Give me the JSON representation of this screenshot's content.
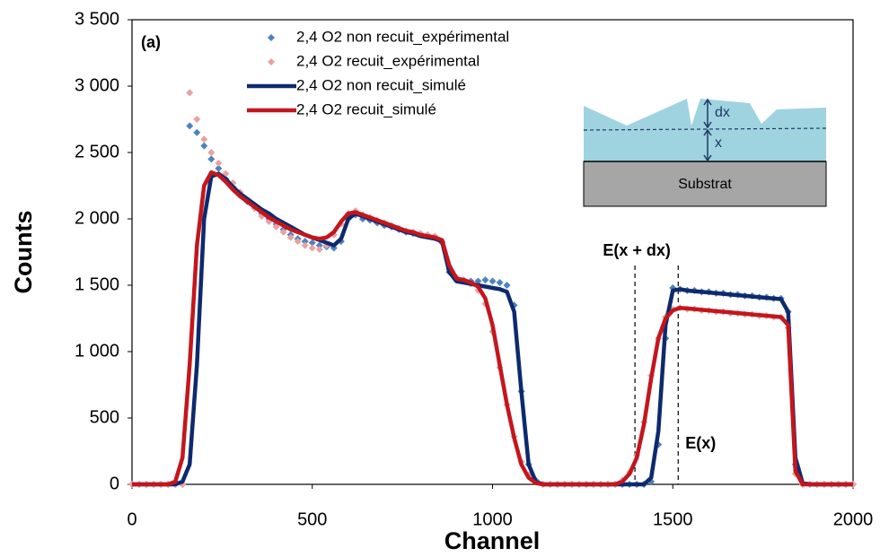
{
  "chart_data": {
    "type": "line",
    "panel_label": "(a)",
    "x_label": "Channel",
    "y_label": "Counts",
    "xlim": [
      0,
      2000
    ],
    "ylim": [
      0,
      3500
    ],
    "xticks": [
      0,
      500,
      1000,
      1500,
      2000
    ],
    "yticks": [
      0,
      500,
      {
        "value": 1000,
        "label": "1 000"
      },
      {
        "value": 1500,
        "label": "1 500"
      },
      {
        "value": 2000,
        "label": "2 000"
      },
      {
        "value": 2500,
        "label": "2 500"
      },
      {
        "value": 3000,
        "label": "3 000"
      },
      {
        "value": 3500,
        "label": "3 500"
      }
    ],
    "legend": "top-left",
    "x": [
      0,
      20,
      40,
      60,
      80,
      100,
      120,
      140,
      160,
      180,
      200,
      220,
      240,
      260,
      280,
      300,
      320,
      340,
      360,
      380,
      400,
      420,
      440,
      460,
      480,
      500,
      520,
      540,
      560,
      580,
      600,
      620,
      640,
      660,
      680,
      700,
      720,
      740,
      760,
      780,
      800,
      820,
      840,
      860,
      880,
      900,
      920,
      940,
      960,
      980,
      1000,
      1020,
      1040,
      1060,
      1080,
      1100,
      1120,
      1140,
      1160,
      1180,
      1200,
      1220,
      1240,
      1260,
      1280,
      1300,
      1320,
      1340,
      1360,
      1380,
      1400,
      1420,
      1440,
      1460,
      1480,
      1500,
      1520,
      1540,
      1560,
      1580,
      1600,
      1620,
      1640,
      1660,
      1680,
      1700,
      1720,
      1740,
      1760,
      1780,
      1800,
      1820,
      1840,
      1860,
      1880,
      1900,
      1920,
      1940,
      1960,
      1980,
      2000
    ],
    "series": [
      {
        "name": "2,4 O2 non recuit_expérimental",
        "type": "scatter",
        "color": "#4f81bd",
        "values": [
          0,
          0,
          0,
          0,
          0,
          0,
          0,
          0,
          2700,
          2650,
          2550,
          2450,
          2380,
          2300,
          2240,
          2180,
          2130,
          2080,
          2040,
          2000,
          1960,
          1920,
          1880,
          1850,
          1830,
          1820,
          1800,
          1790,
          1780,
          1830,
          2000,
          2030,
          2000,
          1990,
          1970,
          1950,
          1940,
          1920,
          1900,
          1890,
          1880,
          1870,
          1860,
          1820,
          1600,
          1540,
          1540,
          1530,
          1530,
          1540,
          1530,
          1520,
          1500,
          1350,
          700,
          150,
          30,
          0,
          0,
          0,
          0,
          0,
          0,
          0,
          0,
          0,
          0,
          0,
          0,
          0,
          0,
          0,
          20,
          300,
          1100,
          1480,
          1470,
          1460,
          1460,
          1450,
          1450,
          1440,
          1440,
          1430,
          1430,
          1420,
          1420,
          1410,
          1410,
          1400,
          1400,
          1300,
          150,
          0,
          0,
          0,
          0,
          0,
          0,
          0,
          0
        ]
      },
      {
        "name": "2,4 O2 recuit_expérimental",
        "type": "scatter",
        "color": "#e6a3a3",
        "values": [
          0,
          0,
          0,
          0,
          0,
          0,
          0,
          0,
          2950,
          2750,
          2600,
          2500,
          2420,
          2340,
          2270,
          2200,
          2140,
          2080,
          2020,
          1980,
          1940,
          1900,
          1860,
          1830,
          1800,
          1780,
          1770,
          1800,
          1880,
          1960,
          2040,
          2060,
          2030,
          2010,
          1990,
          1970,
          1950,
          1930,
          1910,
          1900,
          1890,
          1880,
          1870,
          1830,
          1620,
          1560,
          1540,
          1510,
          1460,
          1360,
          1150,
          880,
          600,
          360,
          170,
          70,
          20,
          0,
          0,
          0,
          0,
          0,
          0,
          0,
          0,
          0,
          0,
          0,
          30,
          90,
          220,
          470,
          820,
          1100,
          1260,
          1320,
          1330,
          1320,
          1320,
          1310,
          1310,
          1300,
          1300,
          1290,
          1290,
          1280,
          1280,
          1270,
          1270,
          1260,
          1260,
          1180,
          80,
          0,
          0,
          0,
          0,
          0,
          0,
          0,
          0
        ]
      },
      {
        "name": "2,4 O2 non recuit_simulé",
        "type": "line",
        "color": "#0e2a6e",
        "values": [
          0,
          0,
          0,
          0,
          0,
          0,
          0,
          20,
          150,
          900,
          2000,
          2320,
          2340,
          2300,
          2240,
          2190,
          2150,
          2110,
          2070,
          2040,
          2000,
          1970,
          1940,
          1910,
          1880,
          1860,
          1840,
          1820,
          1800,
          1850,
          2000,
          2040,
          2020,
          2000,
          1980,
          1960,
          1940,
          1920,
          1900,
          1890,
          1870,
          1860,
          1850,
          1830,
          1600,
          1530,
          1520,
          1510,
          1500,
          1490,
          1480,
          1470,
          1450,
          1300,
          700,
          150,
          20,
          0,
          0,
          0,
          0,
          0,
          0,
          0,
          0,
          0,
          0,
          0,
          0,
          0,
          0,
          0,
          50,
          400,
          1200,
          1460,
          1470,
          1460,
          1455,
          1450,
          1445,
          1440,
          1435,
          1430,
          1425,
          1420,
          1415,
          1410,
          1405,
          1400,
          1395,
          1300,
          200,
          10,
          0,
          0,
          0,
          0,
          0,
          0,
          0
        ]
      },
      {
        "name": "2,4 O2 recuit_simulé",
        "type": "line",
        "color": "#c3161d",
        "values": [
          0,
          0,
          0,
          0,
          0,
          0,
          20,
          200,
          900,
          1800,
          2250,
          2350,
          2330,
          2280,
          2220,
          2170,
          2130,
          2090,
          2050,
          2010,
          1980,
          1950,
          1920,
          1900,
          1880,
          1860,
          1850,
          1860,
          1900,
          1980,
          2040,
          2050,
          2030,
          2010,
          1990,
          1970,
          1950,
          1930,
          1910,
          1900,
          1880,
          1870,
          1860,
          1840,
          1650,
          1550,
          1540,
          1520,
          1490,
          1400,
          1200,
          900,
          600,
          350,
          150,
          50,
          10,
          0,
          0,
          0,
          0,
          0,
          0,
          0,
          0,
          0,
          0,
          0,
          20,
          80,
          200,
          450,
          800,
          1100,
          1250,
          1310,
          1330,
          1325,
          1320,
          1315,
          1310,
          1305,
          1300,
          1295,
          1290,
          1285,
          1280,
          1275,
          1270,
          1265,
          1260,
          1200,
          100,
          0,
          0,
          0,
          0,
          0,
          0,
          0,
          0
        ]
      }
    ],
    "annotations": [
      {
        "text": "E(x + dx)",
        "x": 1395
      },
      {
        "text": "E(x)",
        "x": 1515
      }
    ],
    "inset": {
      "substrate": "Substrat",
      "dx": "dx",
      "x": "x"
    }
  }
}
